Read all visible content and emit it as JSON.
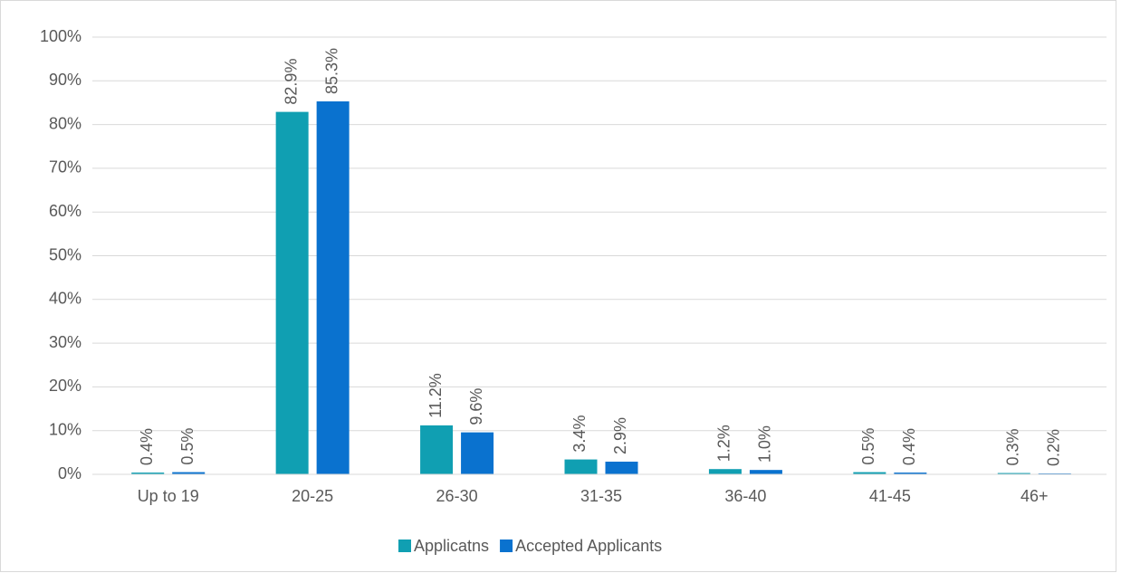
{
  "chart_data": {
    "type": "bar",
    "categories": [
      "Up to 19",
      "20-25",
      "26-30",
      "31-35",
      "36-40",
      "41-45",
      "46+"
    ],
    "series": [
      {
        "name": "Applicatns",
        "color": "#109fb2",
        "values": [
          0.4,
          82.9,
          11.2,
          3.4,
          1.2,
          0.5,
          0.3
        ],
        "value_labels": [
          "0.4%",
          "82.9%",
          "11.2%",
          "3.4%",
          "1.2%",
          "0.5%",
          "0.3%"
        ]
      },
      {
        "name": "Accepted Applicants",
        "color": "#0a72cf",
        "values": [
          0.5,
          85.3,
          9.6,
          2.9,
          1.0,
          0.4,
          0.2
        ],
        "value_labels": [
          "0.5%",
          "85.3%",
          "9.6%",
          "2.9%",
          "1.0%",
          "0.4%",
          "0.2%"
        ]
      }
    ],
    "ylim": [
      0,
      100
    ],
    "yticks": [
      {
        "value": 0,
        "label": "0%"
      },
      {
        "value": 10,
        "label": "10%"
      },
      {
        "value": 20,
        "label": "20%"
      },
      {
        "value": 30,
        "label": "30%"
      },
      {
        "value": 40,
        "label": "40%"
      },
      {
        "value": 50,
        "label": "50%"
      },
      {
        "value": 60,
        "label": "60%"
      },
      {
        "value": 70,
        "label": "70%"
      },
      {
        "value": 80,
        "label": "80%"
      },
      {
        "value": 90,
        "label": "90%"
      },
      {
        "value": 100,
        "label": "100%"
      }
    ],
    "grid": true,
    "legend": "bottom"
  }
}
